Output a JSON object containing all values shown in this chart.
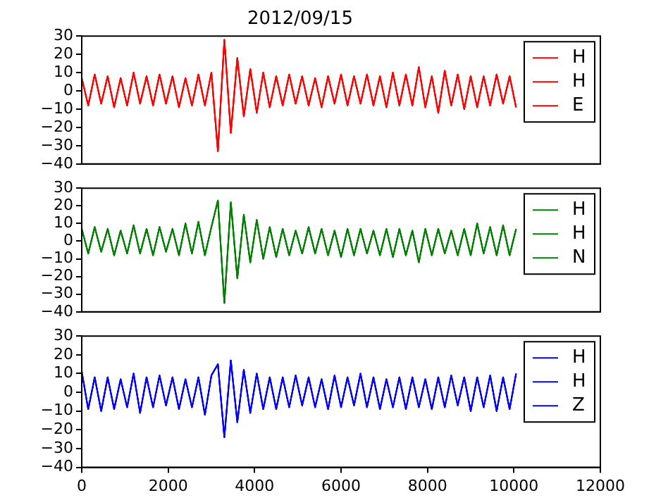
{
  "chart_data": [
    {
      "type": "line",
      "title": "2012/09/15",
      "x": [
        0,
        150,
        300,
        450,
        600,
        750,
        900,
        1050,
        1200,
        1350,
        1500,
        1650,
        1800,
        1950,
        2100,
        2250,
        2400,
        2550,
        2700,
        2850,
        3000,
        3150,
        3300,
        3450,
        3600,
        3750,
        3900,
        4050,
        4200,
        4350,
        4500,
        4650,
        4800,
        4950,
        5100,
        5250,
        5400,
        5550,
        5700,
        5850,
        6000,
        6150,
        6300,
        6450,
        6600,
        6750,
        6900,
        7050,
        7200,
        7350,
        7500,
        7650,
        7800,
        7950,
        8100,
        8250,
        8400,
        8550,
        8700,
        8850,
        9000,
        9150,
        9300,
        9450,
        9600,
        9750,
        9900,
        10050
      ],
      "xlim": [
        0,
        12000
      ],
      "ylim": [
        -40,
        30
      ],
      "yticks": [
        -40,
        -30,
        -20,
        -10,
        0,
        10,
        20,
        30
      ],
      "tick_labels": "y",
      "legend": "top right",
      "grid": false,
      "marker": "none",
      "series": [
        {
          "name": "H",
          "color": "#ff0000",
          "values": [
            7,
            -8,
            9,
            -7,
            8,
            -9,
            7,
            -8,
            10,
            -7,
            8,
            -8,
            9,
            -7,
            8,
            -9,
            7,
            -8,
            9,
            -8,
            10,
            -33,
            28,
            -23,
            18,
            -14,
            12,
            -12,
            10,
            -9,
            8,
            -8,
            9,
            -7,
            8,
            -8,
            7,
            -9,
            8,
            -7,
            9,
            -8,
            8,
            -7,
            9,
            -8,
            8,
            -9,
            10,
            -8,
            9,
            -8,
            13,
            -9,
            8,
            -12,
            11,
            -8,
            9,
            -10,
            8,
            -9,
            8,
            -8,
            9,
            -7,
            8,
            -9
          ]
        },
        {
          "name": "H",
          "color": "#ff0000",
          "values": [
            7,
            -8,
            9,
            -7,
            8,
            -9,
            7,
            -8,
            10,
            -7,
            8,
            -8,
            9,
            -7,
            8,
            -9,
            7,
            -8,
            9,
            -8,
            10,
            -33,
            28,
            -23,
            18,
            -14,
            12,
            -12,
            10,
            -9,
            8,
            -8,
            9,
            -7,
            8,
            -8,
            7,
            -9,
            8,
            -7,
            9,
            -8,
            8,
            -7,
            9,
            -8,
            8,
            -9,
            10,
            -8,
            9,
            -8,
            13,
            -9,
            8,
            -12,
            11,
            -8,
            9,
            -10,
            8,
            -9,
            8,
            -8,
            9,
            -7,
            8,
            -9
          ]
        },
        {
          "name": "E",
          "color": "#ff0000",
          "values": [
            7,
            -8,
            9,
            -7,
            8,
            -9,
            7,
            -8,
            10,
            -7,
            8,
            -8,
            9,
            -7,
            8,
            -9,
            7,
            -8,
            9,
            -8,
            10,
            -33,
            28,
            -23,
            18,
            -14,
            12,
            -12,
            10,
            -9,
            8,
            -8,
            9,
            -7,
            8,
            -8,
            7,
            -9,
            8,
            -7,
            9,
            -8,
            8,
            -7,
            9,
            -8,
            8,
            -9,
            10,
            -8,
            9,
            -8,
            13,
            -9,
            8,
            -12,
            11,
            -8,
            9,
            -10,
            8,
            -9,
            8,
            -8,
            9,
            -7,
            8,
            -9
          ]
        }
      ]
    },
    {
      "type": "line",
      "x": [
        0,
        150,
        300,
        450,
        600,
        750,
        900,
        1050,
        1200,
        1350,
        1500,
        1650,
        1800,
        1950,
        2100,
        2250,
        2400,
        2550,
        2700,
        2850,
        3000,
        3150,
        3300,
        3450,
        3600,
        3750,
        3900,
        4050,
        4200,
        4350,
        4500,
        4650,
        4800,
        4950,
        5100,
        5250,
        5400,
        5550,
        5700,
        5850,
        6000,
        6150,
        6300,
        6450,
        6600,
        6750,
        6900,
        7050,
        7200,
        7350,
        7500,
        7650,
        7800,
        7950,
        8100,
        8250,
        8400,
        8550,
        8700,
        8850,
        9000,
        9150,
        9300,
        9450,
        9600,
        9750,
        9900,
        10050
      ],
      "xlim": [
        0,
        12000
      ],
      "ylim": [
        -40,
        30
      ],
      "yticks": [
        -40,
        -30,
        -20,
        -10,
        0,
        10,
        20,
        30
      ],
      "tick_labels": "y",
      "legend": "top right",
      "grid": false,
      "marker": "none",
      "series": [
        {
          "name": "H",
          "color": "#008000",
          "values": [
            7,
            -7,
            8,
            -6,
            7,
            -8,
            6,
            -7,
            9,
            -7,
            7,
            -8,
            8,
            -6,
            7,
            -8,
            10,
            -7,
            11,
            -8,
            8,
            23,
            -35,
            22,
            -21,
            15,
            -12,
            12,
            -10,
            8,
            -9,
            7,
            -8,
            6,
            -7,
            8,
            -7,
            7,
            -8,
            6,
            -9,
            7,
            -8,
            7,
            -7,
            6,
            -8,
            7,
            -9,
            7,
            -8,
            6,
            -12,
            7,
            -8,
            7,
            -7,
            6,
            -8,
            7,
            -8,
            10,
            -7,
            8,
            -8,
            9,
            -8,
            7
          ]
        },
        {
          "name": "H",
          "color": "#008000",
          "values": [
            7,
            -7,
            8,
            -6,
            7,
            -8,
            6,
            -7,
            9,
            -7,
            7,
            -8,
            8,
            -6,
            7,
            -8,
            10,
            -7,
            11,
            -8,
            8,
            23,
            -35,
            22,
            -21,
            15,
            -12,
            12,
            -10,
            8,
            -9,
            7,
            -8,
            6,
            -7,
            8,
            -7,
            7,
            -8,
            6,
            -9,
            7,
            -8,
            7,
            -7,
            6,
            -8,
            7,
            -9,
            7,
            -8,
            6,
            -12,
            7,
            -8,
            7,
            -7,
            6,
            -8,
            7,
            -8,
            10,
            -7,
            8,
            -8,
            9,
            -8,
            7
          ]
        },
        {
          "name": "N",
          "color": "#008000",
          "values": [
            7,
            -7,
            8,
            -6,
            7,
            -8,
            6,
            -7,
            9,
            -7,
            7,
            -8,
            8,
            -6,
            7,
            -8,
            10,
            -7,
            11,
            -8,
            8,
            23,
            -35,
            22,
            -21,
            15,
            -12,
            12,
            -10,
            8,
            -9,
            7,
            -8,
            6,
            -7,
            8,
            -7,
            7,
            -8,
            6,
            -9,
            7,
            -8,
            7,
            -7,
            6,
            -8,
            7,
            -9,
            7,
            -8,
            6,
            -12,
            7,
            -8,
            7,
            -7,
            6,
            -8,
            7,
            -8,
            10,
            -7,
            8,
            -8,
            9,
            -8,
            7
          ]
        }
      ]
    },
    {
      "type": "line",
      "x": [
        0,
        150,
        300,
        450,
        600,
        750,
        900,
        1050,
        1200,
        1350,
        1500,
        1650,
        1800,
        1950,
        2100,
        2250,
        2400,
        2550,
        2700,
        2850,
        3000,
        3150,
        3300,
        3450,
        3600,
        3750,
        3900,
        4050,
        4200,
        4350,
        4500,
        4650,
        4800,
        4950,
        5100,
        5250,
        5400,
        5550,
        5700,
        5850,
        6000,
        6150,
        6300,
        6450,
        6600,
        6750,
        6900,
        7050,
        7200,
        7350,
        7500,
        7650,
        7800,
        7950,
        8100,
        8250,
        8400,
        8550,
        8700,
        8850,
        9000,
        9150,
        9300,
        9450,
        9600,
        9750,
        9900,
        10050
      ],
      "xlim": [
        0,
        12000
      ],
      "xticks": [
        0,
        2000,
        4000,
        6000,
        8000,
        10000,
        12000
      ],
      "ylim": [
        -40,
        30
      ],
      "yticks": [
        -40,
        -30,
        -20,
        -10,
        0,
        10,
        20,
        30
      ],
      "legend": "top right",
      "grid": false,
      "marker": "none",
      "series": [
        {
          "name": "H",
          "color": "#0000ff",
          "values": [
            11,
            -9,
            8,
            -10,
            8,
            -9,
            7,
            -8,
            10,
            -11,
            8,
            -8,
            9,
            -7,
            8,
            -9,
            7,
            -8,
            8,
            -12,
            9,
            15,
            -24,
            17,
            -16,
            12,
            -11,
            10,
            -9,
            8,
            -9,
            8,
            -8,
            9,
            -7,
            8,
            -8,
            7,
            -9,
            9,
            -8,
            8,
            -7,
            10,
            -8,
            8,
            -9,
            7,
            -8,
            8,
            -9,
            8,
            -8,
            7,
            -9,
            8,
            -8,
            9,
            -7,
            8,
            -10,
            8,
            -8,
            9,
            -10,
            8,
            -9,
            10
          ]
        },
        {
          "name": "H",
          "color": "#0000ff",
          "values": [
            11,
            -9,
            8,
            -10,
            8,
            -9,
            7,
            -8,
            10,
            -11,
            8,
            -8,
            9,
            -7,
            8,
            -9,
            7,
            -8,
            8,
            -12,
            9,
            15,
            -24,
            17,
            -16,
            12,
            -11,
            10,
            -9,
            8,
            -9,
            8,
            -8,
            9,
            -7,
            8,
            -8,
            7,
            -9,
            9,
            -8,
            8,
            -7,
            10,
            -8,
            8,
            -9,
            7,
            -8,
            8,
            -9,
            8,
            -8,
            7,
            -9,
            8,
            -8,
            9,
            -7,
            8,
            -10,
            8,
            -8,
            9,
            -10,
            8,
            -9,
            10
          ]
        },
        {
          "name": "Z",
          "color": "#0000ff",
          "values": [
            11,
            -9,
            8,
            -10,
            8,
            -9,
            7,
            -8,
            10,
            -11,
            8,
            -8,
            9,
            -7,
            8,
            -9,
            7,
            -8,
            8,
            -12,
            9,
            15,
            -24,
            17,
            -16,
            12,
            -11,
            10,
            -9,
            8,
            -9,
            8,
            -8,
            9,
            -7,
            8,
            -8,
            7,
            -9,
            9,
            -8,
            8,
            -7,
            10,
            -8,
            8,
            -9,
            7,
            -8,
            8,
            -9,
            8,
            -8,
            7,
            -9,
            8,
            -8,
            9,
            -7,
            8,
            -10,
            8,
            -8,
            9,
            -10,
            8,
            -9,
            10
          ]
        }
      ]
    }
  ]
}
